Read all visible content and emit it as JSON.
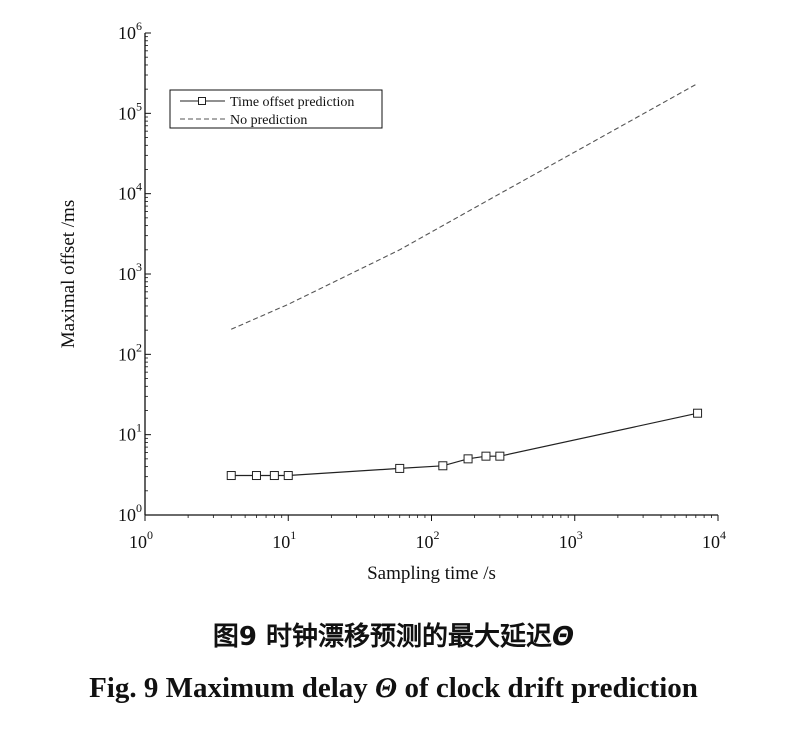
{
  "chart_data": {
    "type": "line",
    "xscale": "log",
    "yscale": "log",
    "xlabel": "Sampling time /s",
    "ylabel": "Maximal offset /ms",
    "xlim": [
      1,
      10000
    ],
    "ylim": [
      1,
      1000000
    ],
    "xticks": [
      {
        "base": "10",
        "exp": "0"
      },
      {
        "base": "10",
        "exp": "1"
      },
      {
        "base": "10",
        "exp": "2"
      },
      {
        "base": "10",
        "exp": "3"
      },
      {
        "base": "10",
        "exp": "4"
      }
    ],
    "yticks": [
      {
        "base": "10",
        "exp": "0"
      },
      {
        "base": "10",
        "exp": "1"
      },
      {
        "base": "10",
        "exp": "2"
      },
      {
        "base": "10",
        "exp": "3"
      },
      {
        "base": "10",
        "exp": "4"
      },
      {
        "base": "10",
        "exp": "5"
      },
      {
        "base": "10",
        "exp": "6"
      }
    ],
    "legend_position": "top-left",
    "grid": false,
    "series": [
      {
        "name": "Time offset prediction",
        "style": "solid",
        "marker": "square",
        "color": "#222222",
        "x": [
          4,
          6,
          8,
          10,
          60,
          120,
          180,
          240,
          300,
          7200
        ],
        "y": [
          3.1,
          3.1,
          3.1,
          3.1,
          3.8,
          4.1,
          5.0,
          5.4,
          5.4,
          18.5
        ]
      },
      {
        "name": "No prediction",
        "style": "dashed",
        "marker": "none",
        "color": "#555555",
        "x": [
          4,
          10,
          60,
          120,
          300,
          1000,
          7200
        ],
        "y": [
          205,
          420,
          2000,
          4000,
          10000,
          33000,
          235000
        ]
      }
    ]
  },
  "caption": {
    "cn_prefix": "图9  时钟漂移预测的最大延迟",
    "cn_symbol": "Θ",
    "en_prefix": "Fig. 9  Maximum delay",
    "en_symbol": "Θ",
    "en_suffix": "of clock drift prediction"
  }
}
